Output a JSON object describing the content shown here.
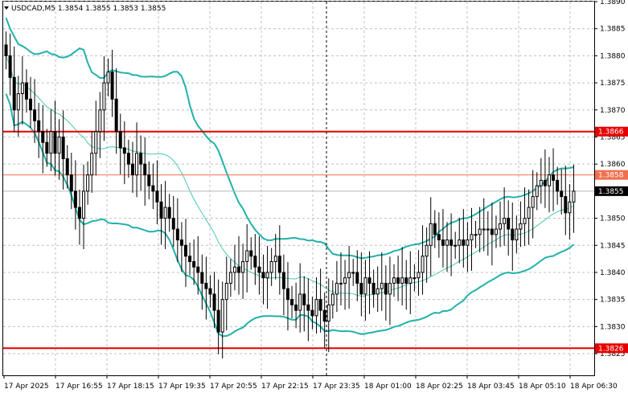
{
  "chart_data": {
    "type": "candlestick",
    "title": "USDCAD,M5  1.3854 1.3855 1.3853 1.3855",
    "symbol": "USDCAD,M5",
    "header_prices": [
      "1.3854",
      "1.3855",
      "1.3853",
      "1.3855"
    ],
    "ylim": [
      1.3821,
      1.389
    ],
    "y_ticks": [
      "1.3890",
      "1.3885",
      "1.3880",
      "1.3875",
      "1.3870",
      "1.3865",
      "1.3860",
      "1.3850",
      "1.3845",
      "1.3840",
      "1.3835",
      "1.3830",
      "1.3825"
    ],
    "x_ticks": [
      "17 Apr 2025",
      "17 Apr 16:55",
      "17 Apr 18:15",
      "17 Apr 19:35",
      "17 Apr 20:55",
      "17 Apr 22:15",
      "17 Apr 23:35",
      "18 Apr 01:00",
      "18 Apr 02:25",
      "18 Apr 03:45",
      "18 Apr 05:10",
      "18 Apr 06:30"
    ],
    "grid": true,
    "colors": {
      "grid": "#c0c0c0",
      "candle": "#000000",
      "bands": "#20b2aa",
      "middle": "#48c9b0",
      "level": "#e60000",
      "price_line": "#b8b8b8"
    },
    "levels": [
      {
        "label": "1.3866",
        "value": 1.3866,
        "color": "#e60000"
      },
      {
        "label": "1.3858",
        "value": 1.3858,
        "color": "#f07050"
      },
      {
        "label": "1.3826",
        "value": 1.3826,
        "color": "#e60000"
      }
    ],
    "current_price": {
      "label": "1.3855",
      "value": 1.3855
    },
    "candles_close": [
      1.388,
      1.3876,
      1.387,
      1.3873,
      1.3875,
      1.3872,
      1.387,
      1.3868,
      1.3866,
      1.3864,
      1.3862,
      1.3866,
      1.3862,
      1.3865,
      1.3861,
      1.3858,
      1.3855,
      1.3852,
      1.385,
      1.3855,
      1.3858,
      1.3862,
      1.3866,
      1.387,
      1.3875,
      1.3877,
      1.3872,
      1.3866,
      1.3863,
      1.3862,
      1.386,
      1.3858,
      1.3862,
      1.386,
      1.3858,
      1.3856,
      1.3855,
      1.3853,
      1.385,
      1.3852,
      1.385,
      1.3848,
      1.3846,
      1.3845,
      1.3843,
      1.3842,
      1.3841,
      1.384,
      1.3838,
      1.3837,
      1.3836,
      1.3833,
      1.3829,
      1.3835,
      1.3838,
      1.384,
      1.3841,
      1.384,
      1.3842,
      1.3844,
      1.3843,
      1.3841,
      1.384,
      1.3839,
      1.384,
      1.3842,
      1.3843,
      1.384,
      1.3837,
      1.3835,
      1.3834,
      1.3833,
      1.3836,
      1.3834,
      1.3833,
      1.3832,
      1.3835,
      1.3833,
      1.3831,
      1.3834,
      1.3836,
      1.3838,
      1.3838,
      1.3839,
      1.384,
      1.384,
      1.3838,
      1.3836,
      1.3839,
      1.3838,
      1.3836,
      1.3837,
      1.3838,
      1.3836,
      1.3838,
      1.3839,
      1.3838,
      1.3839,
      1.3838,
      1.3839,
      1.3839,
      1.384,
      1.3843,
      1.3845,
      1.3849,
      1.3847,
      1.3846,
      1.3845,
      1.3846,
      1.3845,
      1.3845,
      1.3846,
      1.3845,
      1.3846,
      1.3847,
      1.3847,
      1.3848,
      1.3848,
      1.3848,
      1.3847,
      1.3848,
      1.3849,
      1.385,
      1.3848,
      1.3846,
      1.3848,
      1.3849,
      1.385,
      1.3852,
      1.3854,
      1.3856,
      1.3857,
      1.3856,
      1.3858,
      1.3857,
      1.3855,
      1.3854,
      1.3851,
      1.3853,
      1.3855
    ]
  }
}
